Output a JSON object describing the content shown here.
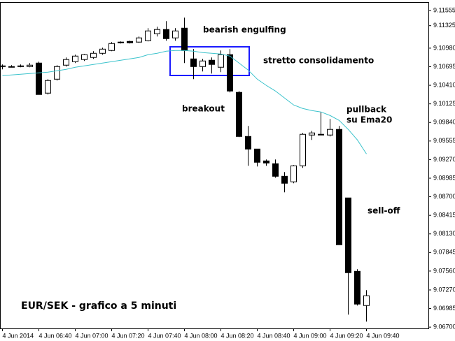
{
  "chart_data": {
    "type": "candlestick",
    "title": "EUR/SEK - grafico a 5 minuti",
    "annotations": [
      "bearish engulfing",
      "stretto consolidamento",
      "breakout",
      "pullback",
      "su Ema20",
      "sell-off"
    ],
    "categories": [
      "4 Jun 2014",
      null,
      null,
      null,
      "4 Jun 06:40",
      null,
      null,
      null,
      "4 Jun 07:00",
      null,
      null,
      null,
      "4 Jun 07:20",
      null,
      null,
      null,
      "4 Jun 07:40",
      null,
      null,
      null,
      "4 Jun 08:00",
      null,
      null,
      null,
      "4 Jun 08:20",
      null,
      null,
      null,
      "4 Jun 08:40",
      null,
      null,
      null,
      "4 Jun 09:00",
      null,
      null,
      null,
      "4 Jun 09:20",
      null,
      null,
      null,
      "4 Jun 09:40"
    ],
    "open": [
      9.10697,
      9.10697,
      9.10697,
      9.10697,
      9.10751,
      9.1029,
      9.10504,
      9.10719,
      9.10772,
      9.10805,
      9.10837,
      9.10901,
      9.10944,
      9.11073,
      9.11083,
      9.11073,
      9.11094,
      9.11201,
      9.11266,
      9.11137,
      9.11287,
      9.10815,
      9.10697,
      9.10794,
      9.10687,
      9.1088,
      9.10301,
      9.09625,
      9.09432,
      9.0925,
      9.09207,
      9.09014,
      9.08929,
      9.09175,
      9.09647,
      9.09658,
      9.09647,
      9.09733,
      9.08682,
      9.07556,
      9.07031
    ],
    "high": [
      9.1073,
      9.10719,
      9.1073,
      9.10751,
      9.10772,
      9.10504,
      9.10719,
      9.10837,
      9.1088,
      9.1089,
      9.10933,
      9.10987,
      9.11073,
      9.11083,
      9.11094,
      9.11158,
      9.11287,
      9.11308,
      9.11394,
      9.11287,
      9.11448,
      9.10965,
      9.10815,
      9.10837,
      9.10944,
      9.10965,
      9.10322,
      9.09786,
      9.09432,
      9.09272,
      9.09272,
      9.09079,
      9.09186,
      9.09679,
      9.09711,
      9.10001,
      9.09893,
      9.09786,
      9.08682,
      9.07589,
      9.07267
    ],
    "low": [
      9.10655,
      9.10687,
      9.10687,
      9.10687,
      9.10269,
      9.10269,
      9.10483,
      9.10697,
      9.10751,
      9.10783,
      9.10815,
      9.1088,
      9.10933,
      9.11051,
      9.11051,
      9.11062,
      9.11083,
      9.11158,
      9.11094,
      9.11094,
      9.10751,
      9.10504,
      9.10622,
      9.1059,
      9.10612,
      9.10301,
      9.09615,
      9.09175,
      9.09164,
      9.09175,
      9.08993,
      9.08768,
      9.08907,
      9.09143,
      9.09572,
      9.09647,
      9.09625,
      9.07964,
      9.06892,
      9.07031,
      9.06785
    ],
    "close": [
      9.10708,
      9.10697,
      9.10708,
      9.10719,
      9.10269,
      9.10483,
      9.10697,
      9.10805,
      9.10858,
      9.1088,
      9.10901,
      9.10965,
      9.11051,
      9.11073,
      9.11062,
      9.11137,
      9.11244,
      9.11266,
      9.11126,
      9.11244,
      9.10944,
      9.10697,
      9.10783,
      9.1073,
      9.1088,
      9.10322,
      9.09625,
      9.09432,
      9.09229,
      9.09218,
      9.09014,
      9.08907,
      9.09175,
      9.09658,
      9.09679,
      9.09647,
      9.09733,
      9.07964,
      9.07535,
      9.07053,
      9.07181
    ],
    "up_color": "#ffffff",
    "down_color": "#000000",
    "line": {
      "color": "#3cc3cc",
      "values": [
        9.10558,
        9.10569,
        9.10579,
        9.1059,
        9.10601,
        9.10612,
        9.10633,
        9.10655,
        9.10687,
        9.10708,
        9.1073,
        9.10751,
        9.10772,
        9.10794,
        9.10815,
        9.10837,
        9.1088,
        9.10901,
        9.10933,
        9.10944,
        9.10944,
        9.10933,
        9.10912,
        9.10901,
        9.1089,
        9.10858,
        9.10751,
        9.10644,
        9.10504,
        9.10408,
        9.10322,
        9.10215,
        9.10108,
        9.10054,
        9.10022,
        9.10001,
        9.09947,
        9.09872,
        9.09733,
        9.09572,
        9.09357
      ]
    },
    "ylim": [
      9.0668,
      9.1168
    ],
    "yticks": [
      9.11555,
      9.11325,
      {
        "value": 9.1098,
        "label": "9.10980"
      },
      9.10695,
      {
        "value": 9.1041,
        "label": "9.10410"
      },
      9.10125,
      {
        "value": 9.0984,
        "label": "9.09840"
      },
      9.09555,
      {
        "value": 9.0927,
        "label": "9.09270"
      },
      9.08985,
      {
        "value": 9.087,
        "label": "9.08700"
      },
      9.08415,
      {
        "value": 9.0813,
        "label": "9.08130"
      },
      9.07845,
      {
        "value": 9.0756,
        "label": "9.07560"
      },
      {
        "value": 9.0727,
        "label": "9.07270"
      },
      9.06985,
      {
        "value": 9.067,
        "label": "9.06700"
      }
    ],
    "grid": false
  }
}
